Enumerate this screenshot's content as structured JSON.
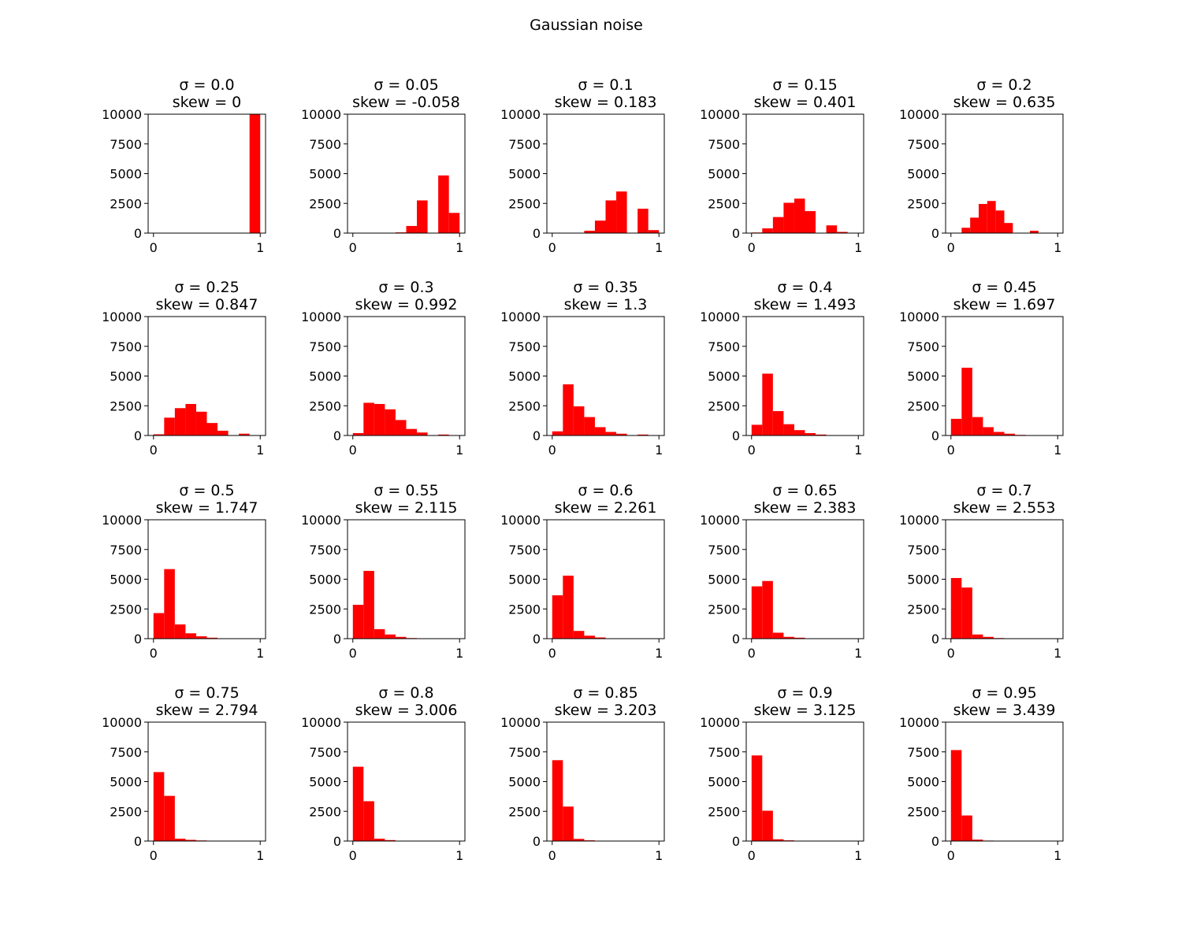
{
  "figure": {
    "title": "Gaussian noise"
  },
  "colors": {
    "bar": "#ff0000",
    "axes": "#000000",
    "background": "#ffffff"
  },
  "chart_data": {
    "type": "bar",
    "title": "Gaussian noise",
    "x_ticks": [
      "0",
      "1"
    ],
    "y_ticks": [
      "0",
      "2500",
      "5000",
      "7500",
      "10000"
    ],
    "ylim": [
      0,
      10000
    ],
    "bins": 10,
    "panels": [
      {
        "sigma_label": "σ = 0.0",
        "skew_label": "skew = 0",
        "xrange": [
          0.0,
          1.0
        ],
        "values": [
          0,
          0,
          0,
          0,
          0,
          0,
          0,
          0,
          0,
          10000
        ]
      },
      {
        "sigma_label": "σ = 0.05",
        "skew_label": "skew = -0.058",
        "xrange": [
          0.0,
          1.0
        ],
        "values": [
          0,
          0,
          0,
          0,
          60,
          600,
          2750,
          0,
          4850,
          1700
        ]
      },
      {
        "sigma_label": "σ = 0.1",
        "skew_label": "skew = 0.183",
        "xrange": [
          0.0,
          1.0
        ],
        "values": [
          0,
          0,
          0,
          200,
          1050,
          2750,
          3500,
          0,
          2050,
          250
        ]
      },
      {
        "sigma_label": "σ = 0.15",
        "skew_label": "skew = 0.401",
        "xrange": [
          0.0,
          1.0
        ],
        "values": [
          50,
          400,
          1350,
          2550,
          2900,
          1850,
          0,
          650,
          100,
          0
        ]
      },
      {
        "sigma_label": "σ = 0.2",
        "skew_label": "skew = 0.635",
        "xrange": [
          0.1,
          0.9
        ],
        "values": [
          450,
          1300,
          2450,
          2700,
          1900,
          850,
          0,
          0,
          200,
          0
        ]
      },
      {
        "sigma_label": "σ = 0.25",
        "skew_label": "skew = 0.847",
        "xrange": [
          0.0,
          1.0
        ],
        "values": [
          100,
          1500,
          2300,
          2650,
          2000,
          1050,
          400,
          0,
          150,
          0
        ]
      },
      {
        "sigma_label": "σ = 0.3",
        "skew_label": "skew = 0.992",
        "xrange": [
          0.0,
          1.0
        ],
        "values": [
          200,
          2750,
          2650,
          2200,
          1300,
          550,
          250,
          0,
          80,
          0
        ]
      },
      {
        "sigma_label": "σ = 0.35",
        "skew_label": "skew = 1.3",
        "xrange": [
          0.0,
          1.0
        ],
        "values": [
          350,
          4300,
          2450,
          1550,
          700,
          300,
          150,
          0,
          80,
          0
        ]
      },
      {
        "sigma_label": "σ = 0.4",
        "skew_label": "skew = 1.493",
        "xrange": [
          0.0,
          1.0
        ],
        "values": [
          900,
          5200,
          2050,
          950,
          450,
          200,
          80,
          0,
          0,
          0
        ]
      },
      {
        "sigma_label": "σ = 0.45",
        "skew_label": "skew = 1.697",
        "xrange": [
          0.0,
          1.0
        ],
        "values": [
          1400,
          5700,
          1550,
          700,
          300,
          150,
          50,
          0,
          0,
          0
        ]
      },
      {
        "sigma_label": "σ = 0.5",
        "skew_label": "skew = 1.747",
        "xrange": [
          0.0,
          1.0
        ],
        "values": [
          2150,
          5850,
          1200,
          450,
          200,
          80,
          30,
          0,
          0,
          0
        ]
      },
      {
        "sigma_label": "σ = 0.55",
        "skew_label": "skew = 2.115",
        "xrange": [
          0.0,
          1.0
        ],
        "values": [
          2850,
          5700,
          800,
          350,
          150,
          50,
          0,
          0,
          0,
          0
        ]
      },
      {
        "sigma_label": "σ = 0.6",
        "skew_label": "skew = 2.261",
        "xrange": [
          0.0,
          1.0
        ],
        "values": [
          3650,
          5300,
          650,
          250,
          100,
          30,
          0,
          0,
          0,
          0
        ]
      },
      {
        "sigma_label": "σ = 0.65",
        "skew_label": "skew = 2.383",
        "xrange": [
          0.0,
          1.0
        ],
        "values": [
          4400,
          4850,
          500,
          150,
          80,
          0,
          0,
          0,
          0,
          0
        ]
      },
      {
        "sigma_label": "σ = 0.7",
        "skew_label": "skew = 2.553",
        "xrange": [
          0.0,
          1.0
        ],
        "values": [
          5100,
          4300,
          350,
          150,
          50,
          0,
          0,
          0,
          0,
          0
        ]
      },
      {
        "sigma_label": "σ = 0.75",
        "skew_label": "skew = 2.794",
        "xrange": [
          0.0,
          1.0
        ],
        "values": [
          5800,
          3800,
          200,
          100,
          50,
          0,
          0,
          0,
          0,
          0
        ]
      },
      {
        "sigma_label": "σ = 0.8",
        "skew_label": "skew = 3.006",
        "xrange": [
          0.0,
          1.0
        ],
        "values": [
          6250,
          3350,
          200,
          80,
          30,
          0,
          0,
          0,
          0,
          0
        ]
      },
      {
        "sigma_label": "σ = 0.85",
        "skew_label": "skew = 3.203",
        "xrange": [
          0.0,
          1.0
        ],
        "values": [
          6800,
          2900,
          180,
          60,
          0,
          0,
          0,
          0,
          0,
          0
        ]
      },
      {
        "sigma_label": "σ = 0.9",
        "skew_label": "skew = 3.125",
        "xrange": [
          0.0,
          1.0
        ],
        "values": [
          7200,
          2550,
          150,
          60,
          0,
          0,
          0,
          0,
          0,
          0
        ]
      },
      {
        "sigma_label": "σ = 0.95",
        "skew_label": "skew = 3.439",
        "xrange": [
          0.0,
          1.0
        ],
        "values": [
          7650,
          2150,
          120,
          40,
          0,
          0,
          0,
          0,
          0,
          0
        ]
      }
    ]
  }
}
